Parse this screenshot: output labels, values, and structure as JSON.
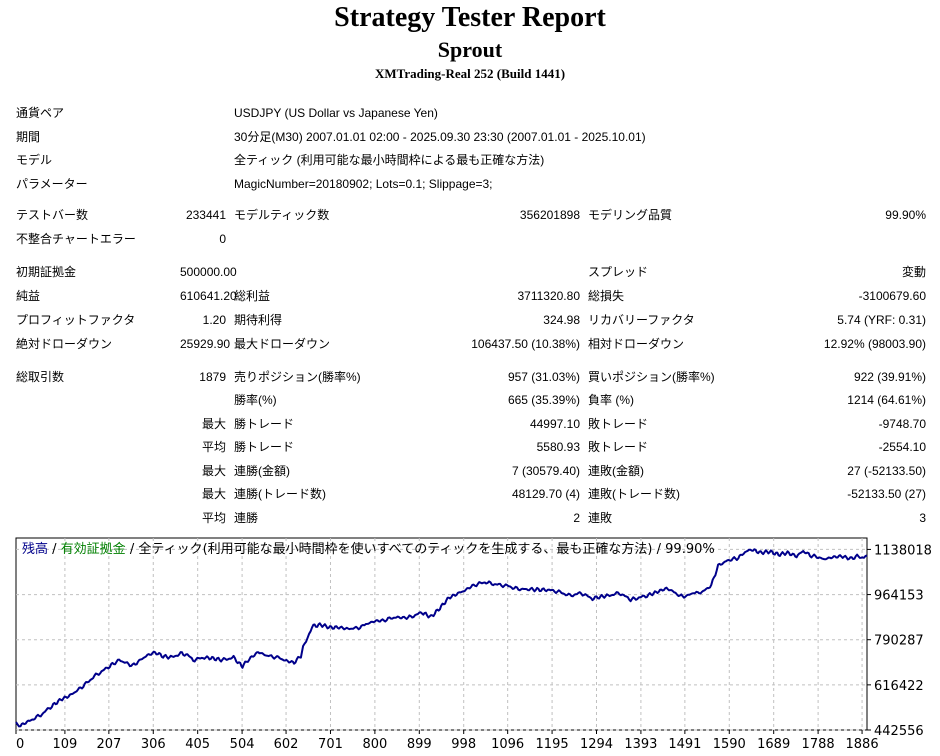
{
  "header": {
    "title": "Strategy Tester Report",
    "ea_name": "Sprout",
    "server": "XMTrading-Real 252 (Build 1441)"
  },
  "info": [
    {
      "label": "通貨ペア",
      "value": "USDJPY (US Dollar vs Japanese Yen)"
    },
    {
      "label": "期間",
      "value": "30分足(M30) 2007.01.01 02:00 - 2025.09.30 23:30 (2007.01.01 - 2025.10.01)"
    },
    {
      "label": "モデル",
      "value": "全ティック (利用可能な最小時間枠による最も正確な方法)"
    },
    {
      "label": "パラメーター",
      "value": "MagicNumber=20180902; Lots=0.1; Slippage=3;"
    }
  ],
  "test": {
    "bars_label": "テストバー数",
    "bars": "233441",
    "ticks_label": "モデルティック数",
    "ticks": "356201898",
    "quality_label": "モデリング品質",
    "quality": "99.90%",
    "errors_label": "不整合チャートエラー",
    "errors": "0"
  },
  "results": {
    "deposit_label": "初期証拠金",
    "deposit": "500000.00",
    "spread_label": "スプレッド",
    "spread": "変動",
    "net_label": "純益",
    "net": "610641.20",
    "gross_profit_label": "総利益",
    "gross_profit": "3711320.80",
    "gross_loss_label": "総損失",
    "gross_loss": "-3100679.60",
    "pf_label": "プロフィットファクタ",
    "pf": "1.20",
    "expected_label": "期待利得",
    "expected": "324.98",
    "recovery_label": "リカバリーファクタ",
    "recovery": "5.74 (YRF: 0.31)",
    "abs_dd_label": "絶対ドローダウン",
    "abs_dd": "25929.90",
    "max_dd_label": "最大ドローダウン",
    "max_dd": "106437.50 (10.38%)",
    "rel_dd_label": "相対ドローダウン",
    "rel_dd": "12.92% (98003.90)"
  },
  "trades": {
    "total_label": "総取引数",
    "total": "1879",
    "short_label": "売りポジション(勝率%)",
    "short": "957 (31.03%)",
    "long_label": "買いポジション(勝率%)",
    "long": "922 (39.91%)",
    "win_label": "勝率(%)",
    "win": "665 (35.39%)",
    "loss_label": "負率 (%)",
    "loss": "1214 (64.61%)",
    "max_prefix": "最大",
    "avg_prefix": "平均",
    "largest_win_label": "勝トレード",
    "largest_win": "44997.10",
    "largest_loss_label": "敗トレード",
    "largest_loss": "-9748.70",
    "avg_win_label": "勝トレード",
    "avg_win": "5580.93",
    "avg_loss_label": "敗トレード",
    "avg_loss": "-2554.10",
    "max_consec_wins_money_label": "連勝(金額)",
    "max_consec_wins_money": "7 (30579.40)",
    "max_consec_losses_money_label": "連敗(金額)",
    "max_consec_losses_money": "27 (-52133.50)",
    "max_consec_profit_label": "連勝(トレード数)",
    "max_consec_profit": "48129.70 (4)",
    "max_consec_loss_label": "連敗(トレード数)",
    "max_consec_loss": "-52133.50 (27)",
    "avg_consec_wins_label": "連勝",
    "avg_consec_wins": "2",
    "avg_consec_losses_label": "連敗",
    "avg_consec_losses": "3"
  },
  "chart_data": {
    "type": "line",
    "legend": {
      "balance": "残高",
      "sep1": " / ",
      "equity": "有効証拠金",
      "sep2": " / ",
      "model": "全ティック(利用可能な最小時間枠を使いすべてのティックを生成する、最も正確な方法)",
      "sep3": " / ",
      "quality": "99.90%"
    },
    "colors": {
      "balance": "#00008b",
      "legend_balance": "#00008b",
      "legend_equity": "#008000",
      "grid": "#c0c0c0"
    },
    "legend_placement": "top-left",
    "grid": true,
    "x_ticks": [
      0,
      109,
      207,
      306,
      405,
      504,
      602,
      701,
      800,
      899,
      998,
      1096,
      1195,
      1294,
      1393,
      1491,
      1590,
      1689,
      1788,
      1886
    ],
    "y_ticks": [
      442556,
      616422,
      790287,
      964153,
      1138018
    ],
    "xlim": [
      0,
      1897
    ],
    "ylim": [
      442556,
      1182000
    ],
    "series": [
      {
        "x": [
          0,
          10,
          30,
          55,
          80,
          100,
          120,
          150,
          175,
          200,
          230,
          260,
          290,
          310,
          325,
          345,
          370,
          385,
          395,
          420,
          440,
          460,
          485,
          500,
          505,
          520,
          540,
          560,
          585,
          600,
          620,
          635,
          640,
          650,
          660,
          680,
          700,
          720,
          740,
          770,
          780,
          800,
          820,
          845,
          865,
          880,
          905,
          925,
          945,
          965,
          985,
          1000,
          1020,
          1045,
          1070,
          1095,
          1120,
          1150,
          1185,
          1210,
          1235,
          1260,
          1285,
          1300,
          1320,
          1345,
          1370,
          1385,
          1410,
          1430,
          1450,
          1470,
          1480,
          1495,
          1510,
          1520,
          1535,
          1550,
          1565,
          1580,
          1595,
          1610,
          1625,
          1640,
          1660,
          1680,
          1700,
          1720,
          1740,
          1755,
          1770,
          1785,
          1800,
          1820,
          1840,
          1860,
          1875,
          1890,
          1897
        ],
        "y": [
          470000,
          460000,
          478000,
          500000,
          535000,
          560000,
          575000,
          612000,
          650000,
          678000,
          712000,
          690000,
          728000,
          742000,
          728000,
          722000,
          738000,
          728000,
          712000,
          722000,
          718000,
          712000,
          722000,
          695000,
          688000,
          716000,
          743000,
          728000,
          722000,
          710000,
          702000,
          728000,
          760000,
          800000,
          842000,
          848000,
          837000,
          838000,
          832000,
          838000,
          850000,
          862000,
          865000,
          877000,
          875000,
          878000,
          895000,
          878000,
          912000,
          952000,
          968000,
          980000,
          1000000,
          1012000,
          1003000,
          998000,
          985000,
          984000,
          982000,
          975000,
          960000,
          970000,
          948000,
          955000,
          960000,
          970000,
          945000,
          950000,
          962000,
          975000,
          988000,
          972000,
          958000,
          958000,
          972000,
          968000,
          980000,
          1000000,
          1075000,
          1090000,
          1100000,
          1105000,
          1128000,
          1138000,
          1125000,
          1130000,
          1118000,
          1125000,
          1112000,
          1132000,
          1115000,
          1110000,
          1100000,
          1108000,
          1112000,
          1102000,
          1112000,
          1105000,
          1115000
        ]
      }
    ]
  }
}
